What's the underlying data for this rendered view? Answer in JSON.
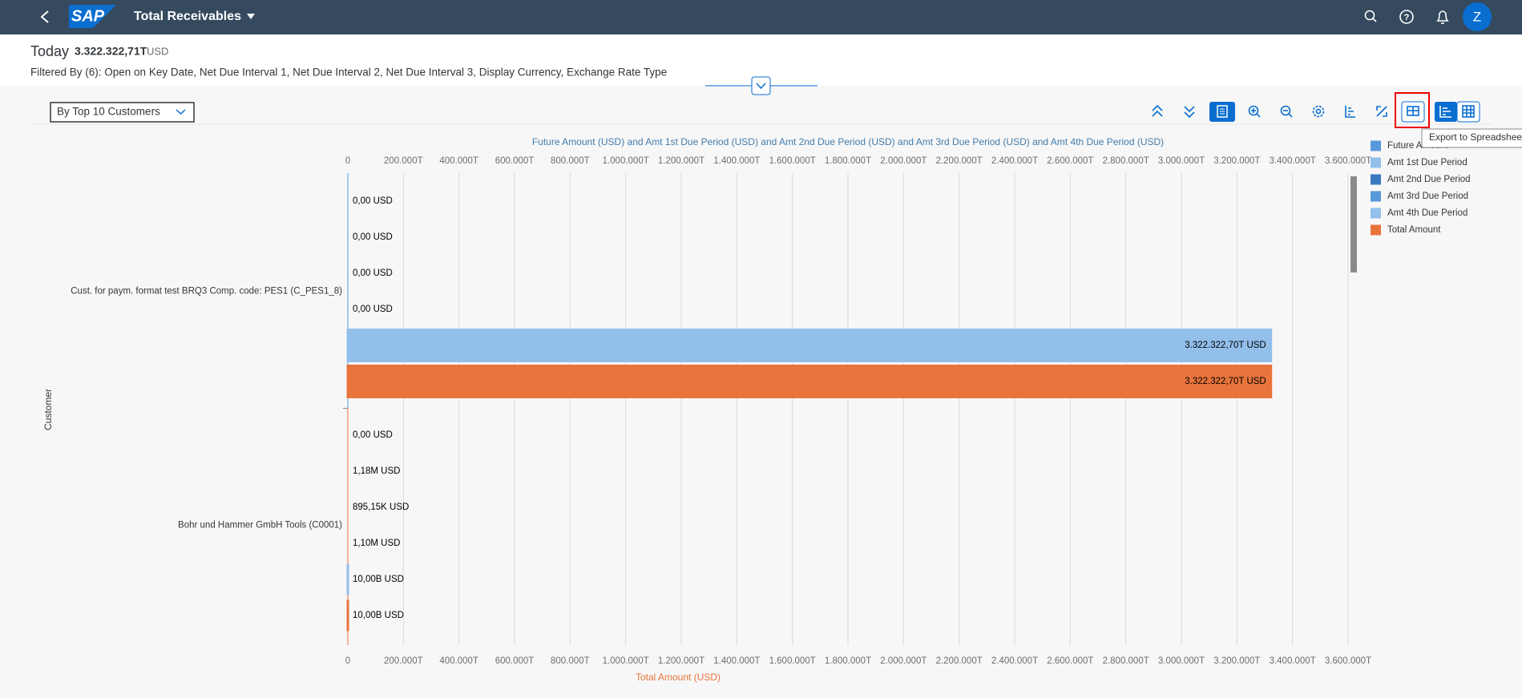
{
  "header": {
    "title": "Total Receivables",
    "avatar": "Z"
  },
  "kpi": {
    "label": "Today",
    "value": "3.322.322,71T",
    "unit": "USD",
    "filters": "Filtered By (6): Open on Key Date, Net Due Interval 1, Net Due Interval 2, Net Due Interval 3, Display Currency, Exchange Rate Type"
  },
  "toolbar": {
    "view": "By Top 10 Customers",
    "tooltip": "Export to Spreadsheet"
  },
  "chart_data": {
    "type": "bar",
    "orientation": "horizontal",
    "title": "Future Amount (USD) and Amt 1st Due Period (USD) and Amt 2nd Due Period (USD) and Amt 3rd Due Period (USD) and Amt 4th Due Period (USD)",
    "x_label": "Total Amount (USD)",
    "y_label": "Customer",
    "categories": [
      "Cust. for paym. format test BRQ3 Comp. code: PES1 (C_PES1_8)",
      "Bohr und Hammer GmbH Tools (C0001)"
    ],
    "series": [
      {
        "name": "Future Amount",
        "color": "#5899da",
        "values": [
          0,
          0
        ],
        "value_labels": [
          "0,00 USD",
          "0,00 USD"
        ]
      },
      {
        "name": "Amt 1st Due Period",
        "color": "#93bfeb",
        "values": [
          0,
          1180000
        ],
        "value_labels": [
          "0,00 USD",
          "1,18M USD"
        ]
      },
      {
        "name": "Amt 2nd Due Period",
        "color": "#3a78c0",
        "values": [
          0,
          895150
        ],
        "value_labels": [
          "0,00 USD",
          "895,15K USD"
        ]
      },
      {
        "name": "Amt 3rd Due Period",
        "color": "#5899da",
        "values": [
          0,
          1100000
        ],
        "value_labels": [
          "0,00 USD",
          "1,10M USD"
        ]
      },
      {
        "name": "Amt 4th Due Period",
        "color": "#93bfeb",
        "values": [
          3.3223227e+18,
          10000000000
        ],
        "value_labels": [
          "3.322.322,70T USD",
          "10,00B USD"
        ]
      },
      {
        "name": "Total Amount",
        "color": "#e8743b",
        "values": [
          3.3223227e+18,
          10000000000
        ],
        "value_labels": [
          "3.322.322,70T USD",
          "10,00B USD"
        ]
      }
    ],
    "xlim": [
      0,
      3.6e+18
    ],
    "xticks": [
      0,
      {
        "value": 2e+17,
        "label": "200.000T"
      },
      {
        "value": 4e+17,
        "label": "400.000T"
      },
      {
        "value": 6e+17,
        "label": "600.000T"
      },
      {
        "value": 8e+17,
        "label": "800.000T"
      },
      {
        "value": 1e+18,
        "label": "1.000.000T"
      },
      {
        "value": 1.2e+18,
        "label": "1.200.000T"
      },
      {
        "value": 1.4e+18,
        "label": "1.400.000T"
      },
      {
        "value": 1.6e+18,
        "label": "1.600.000T"
      },
      {
        "value": 1.8e+18,
        "label": "1.800.000T"
      },
      {
        "value": 2e+18,
        "label": "2.000.000T"
      },
      {
        "value": 2.2e+18,
        "label": "2.200.000T"
      },
      {
        "value": 2.4e+18,
        "label": "2.400.000T"
      },
      {
        "value": 2.6e+18,
        "label": "2.600.000T"
      },
      {
        "value": 2.8e+18,
        "label": "2.800.000T"
      },
      {
        "value": 3e+18,
        "label": "3.000.000T"
      },
      {
        "value": 3.2e+18,
        "label": "3.200.000T"
      },
      {
        "value": 3.4e+18,
        "label": "3.400.000T"
      },
      {
        "value": 3.6e+18,
        "label": "3.600.000T"
      }
    ],
    "grid": true,
    "legend": "right"
  }
}
